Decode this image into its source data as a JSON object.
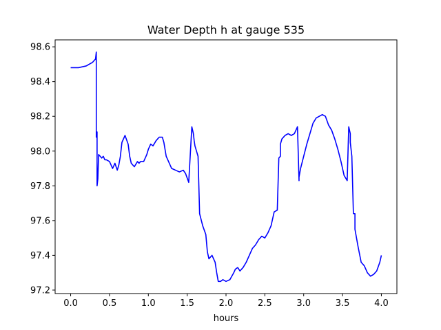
{
  "chart_data": {
    "type": "line",
    "title": "Water Depth h at gauge 535",
    "xlabel": "hours",
    "ylabel": "",
    "xlim": [
      -0.2,
      4.2
    ],
    "ylim": [
      97.18,
      98.64
    ],
    "xticks": [
      0.0,
      0.5,
      1.0,
      1.5,
      2.0,
      2.5,
      3.0,
      3.5,
      4.0
    ],
    "xtick_labels": [
      "0.0",
      "0.5",
      "1.0",
      "1.5",
      "2.0",
      "2.5",
      "3.0",
      "3.5",
      "4.0"
    ],
    "yticks": [
      97.2,
      97.4,
      97.6,
      97.8,
      98.0,
      98.2,
      98.4,
      98.6
    ],
    "ytick_labels": [
      "97.2",
      "97.4",
      "97.6",
      "97.8",
      "98.0",
      "98.2",
      "98.4",
      "98.6"
    ],
    "grid": false,
    "series": [
      {
        "color": "#0000ff",
        "x": [
          0.0,
          0.1,
          0.2,
          0.28,
          0.32,
          0.33,
          0.33,
          0.34,
          0.34,
          0.35,
          0.36,
          0.4,
          0.42,
          0.44,
          0.46,
          0.5,
          0.54,
          0.57,
          0.6,
          0.62,
          0.64,
          0.66,
          0.7,
          0.74,
          0.76,
          0.78,
          0.82,
          0.86,
          0.88,
          0.9,
          0.94,
          0.98,
          1.0,
          1.03,
          1.06,
          1.1,
          1.14,
          1.18,
          1.2,
          1.23,
          1.27,
          1.3,
          1.35,
          1.4,
          1.45,
          1.48,
          1.52,
          1.56,
          1.58,
          1.59,
          1.6,
          1.64,
          1.66,
          1.66,
          1.7,
          1.74,
          1.76,
          1.78,
          1.82,
          1.86,
          1.88,
          1.9,
          1.93,
          1.96,
          2.0,
          2.05,
          2.1,
          2.12,
          2.15,
          2.18,
          2.22,
          2.26,
          2.3,
          2.34,
          2.38,
          2.42,
          2.46,
          2.5,
          2.54,
          2.58,
          2.62,
          2.66,
          2.68,
          2.7,
          2.7,
          2.7,
          2.72,
          2.76,
          2.8,
          2.84,
          2.88,
          2.92,
          2.94,
          2.94,
          2.96,
          3.0,
          3.04,
          3.08,
          3.12,
          3.16,
          3.2,
          3.24,
          3.28,
          3.32,
          3.36,
          3.4,
          3.44,
          3.48,
          3.52,
          3.56,
          3.58,
          3.6,
          3.6,
          3.62,
          3.64,
          3.66,
          3.66,
          3.7,
          3.74,
          3.78,
          3.82,
          3.86,
          3.9,
          3.94,
          3.98,
          4.0
        ],
        "values": [
          98.48,
          98.48,
          98.49,
          98.51,
          98.53,
          98.57,
          98.08,
          98.11,
          97.8,
          97.84,
          97.98,
          97.96,
          97.97,
          97.95,
          97.95,
          97.94,
          97.9,
          97.93,
          97.89,
          97.92,
          97.97,
          98.05,
          98.09,
          98.04,
          97.97,
          97.93,
          97.91,
          97.94,
          97.93,
          97.94,
          97.94,
          97.98,
          98.01,
          98.04,
          98.03,
          98.06,
          98.08,
          98.08,
          98.05,
          97.97,
          97.93,
          97.9,
          97.89,
          97.88,
          97.89,
          97.87,
          97.82,
          98.14,
          98.1,
          98.06,
          98.03,
          97.97,
          97.64,
          97.64,
          97.57,
          97.52,
          97.42,
          97.38,
          97.4,
          97.36,
          97.3,
          97.25,
          97.25,
          97.26,
          97.25,
          97.26,
          97.3,
          97.32,
          97.33,
          97.31,
          97.33,
          97.36,
          97.4,
          97.44,
          97.46,
          97.49,
          97.51,
          97.5,
          97.53,
          97.57,
          97.65,
          97.66,
          97.96,
          97.97,
          98.0,
          98.04,
          98.07,
          98.09,
          98.1,
          98.09,
          98.1,
          98.14,
          97.83,
          97.85,
          97.9,
          97.97,
          98.04,
          98.1,
          98.16,
          98.19,
          98.2,
          98.21,
          98.2,
          98.15,
          98.12,
          98.07,
          98.01,
          97.94,
          97.86,
          97.83,
          98.14,
          98.1,
          98.05,
          97.97,
          97.64,
          97.64,
          97.55,
          97.45,
          97.36,
          97.34,
          97.3,
          97.28,
          97.29,
          97.31,
          97.36,
          97.4
        ]
      }
    ]
  }
}
